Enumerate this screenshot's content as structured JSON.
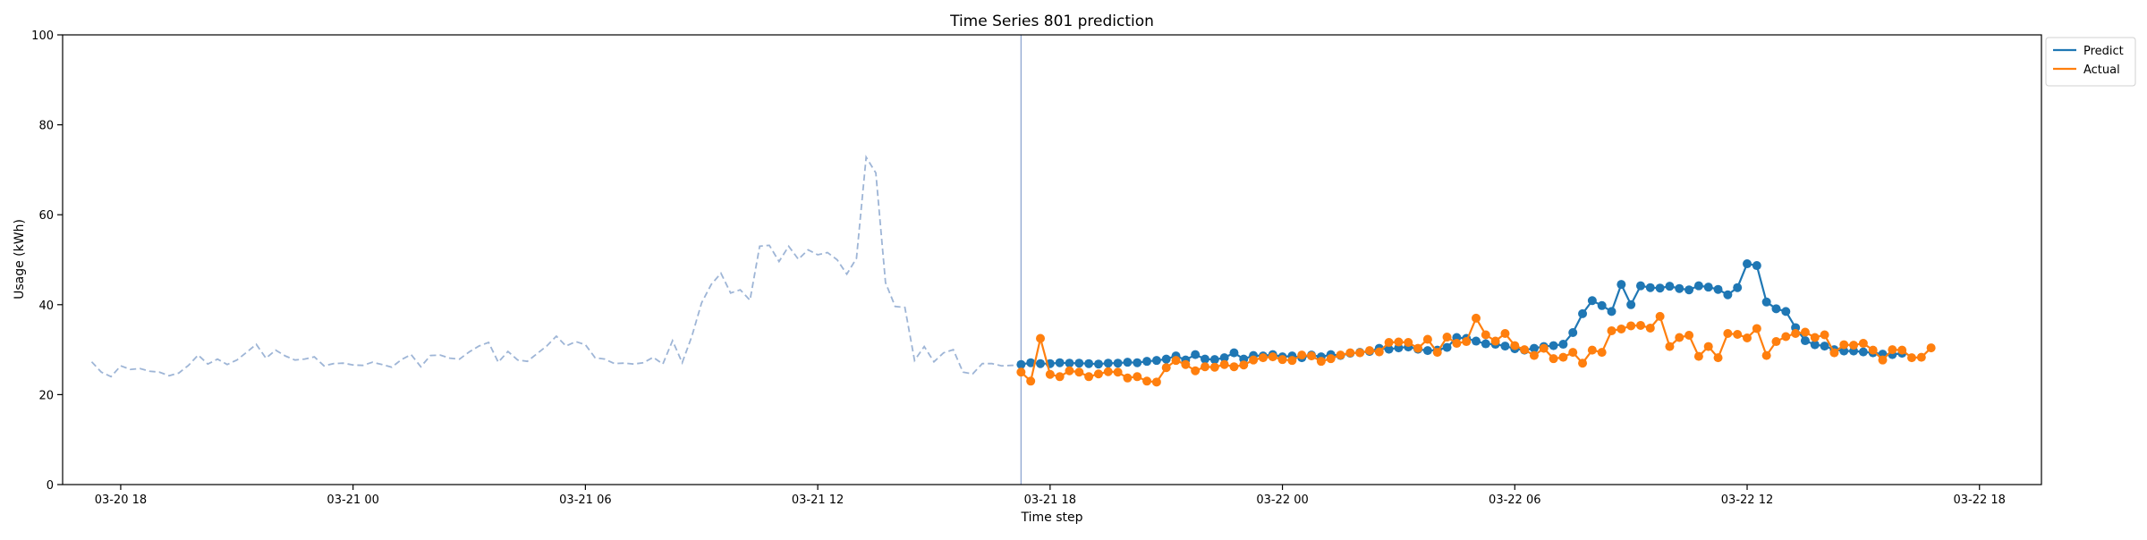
{
  "chart_data": {
    "type": "line",
    "title": "Time Series 801 prediction",
    "xlabel": "Time step",
    "ylabel": "Usage (kWh)",
    "ylim": [
      0,
      100
    ],
    "yticks": [
      0,
      20,
      40,
      60,
      80,
      100
    ],
    "xticks": [
      {
        "value": 18,
        "label": "03-20 18"
      },
      {
        "value": 24,
        "label": "03-21 00"
      },
      {
        "value": 30,
        "label": "03-21 06"
      },
      {
        "value": 36,
        "label": "03-21 12"
      },
      {
        "value": 42,
        "label": "03-21 18"
      },
      {
        "value": 48,
        "label": "03-22 00"
      },
      {
        "value": 54,
        "label": "03-22 06"
      },
      {
        "value": 60,
        "label": "03-22 12"
      },
      {
        "value": 66,
        "label": "03-22 18"
      }
    ],
    "xlim": [
      16.5,
      67.6
    ],
    "grid": false,
    "legend": "top-right",
    "split_marker_x": 41.25,
    "history_series": {
      "name": "",
      "color": "#9eb5d6",
      "dashed": true,
      "start_x": 17.25,
      "step": 0.25,
      "values": [
        27.3,
        25.0,
        24.0,
        26.4,
        25.6,
        25.8,
        25.2,
        25.0,
        24.2,
        24.8,
        26.5,
        28.8,
        26.8,
        27.9,
        26.7,
        27.7,
        29.4,
        31.2,
        28.1,
        29.9,
        28.6,
        27.7,
        27.9,
        28.4,
        26.4,
        26.9,
        27.0,
        26.6,
        26.5,
        27.2,
        26.7,
        26.1,
        27.8,
        28.9,
        26.2,
        28.7,
        28.8,
        28.1,
        27.9,
        29.5,
        30.8,
        31.6,
        27.2,
        29.6,
        27.7,
        27.4,
        29.1,
        30.8,
        33.0,
        30.8,
        31.8,
        31.1,
        28.2,
        27.9,
        26.9,
        27.0,
        26.8,
        27.1,
        28.3,
        26.8,
        32.0,
        27.1,
        33.0,
        40.4,
        44.5,
        47.0,
        42.6,
        43.3,
        41.0,
        53.0,
        53.2,
        49.6,
        53.0,
        50.1,
        52.2,
        51.1,
        51.6,
        50.0,
        46.8,
        50.3,
        72.8,
        69.3,
        44.9,
        39.6,
        39.4,
        27.6,
        30.7,
        27.3,
        29.3,
        30.0,
        25.0,
        24.6,
        26.9,
        26.9,
        26.4,
        26.5,
        26.6
      ]
    },
    "series": [
      {
        "name": "Predict",
        "color": "#1f77b4",
        "start_x": 41.25,
        "step": 0.25,
        "values": [
          26.7,
          27.1,
          26.9,
          26.9,
          27.1,
          27.0,
          27.0,
          26.9,
          26.8,
          27.0,
          27.0,
          27.2,
          27.1,
          27.4,
          27.6,
          27.9,
          28.6,
          27.7,
          28.9,
          27.9,
          27.8,
          28.2,
          29.3,
          27.9,
          28.7,
          28.6,
          28.9,
          28.4,
          28.6,
          28.2,
          28.8,
          28.4,
          28.9,
          28.7,
          29.2,
          29.4,
          29.6,
          30.3,
          30.1,
          30.4,
          30.6,
          30.1,
          29.8,
          29.9,
          30.5,
          32.7,
          32.5,
          31.9,
          31.3,
          31.2,
          30.8,
          30.2,
          29.9,
          30.3,
          30.7,
          30.9,
          31.2,
          33.8,
          38.0,
          40.9,
          39.8,
          38.5,
          44.5,
          40.0,
          44.2,
          43.8,
          43.7,
          44.1,
          43.6,
          43.3,
          44.2,
          43.9,
          43.4,
          42.2,
          43.8,
          49.1,
          48.7,
          40.6,
          39.1,
          38.5,
          34.9,
          32.0,
          31.1,
          30.8,
          30.0,
          29.7,
          29.7,
          29.5,
          29.3,
          29.0,
          28.9,
          29.2
        ]
      },
      {
        "name": "Actual",
        "color": "#ff7f0e",
        "start_x": 41.25,
        "step": 0.25,
        "values": [
          25.0,
          23.0,
          32.5,
          24.5,
          24.0,
          25.3,
          25.0,
          24.0,
          24.6,
          25.1,
          25.0,
          23.7,
          24.0,
          23.0,
          22.8,
          26.0,
          27.6,
          26.7,
          25.3,
          26.2,
          26.1,
          26.7,
          26.2,
          26.6,
          27.7,
          28.2,
          28.4,
          27.8,
          27.6,
          28.8,
          28.6,
          27.4,
          28.0,
          28.8,
          29.3,
          29.3,
          29.8,
          29.5,
          31.6,
          31.7,
          31.6,
          30.3,
          32.3,
          29.4,
          32.8,
          31.4,
          31.8,
          37.0,
          33.3,
          31.9,
          33.6,
          30.9,
          30.0,
          28.7,
          30.3,
          28.0,
          28.3,
          29.4,
          27.0,
          29.9,
          29.4,
          34.2,
          34.6,
          35.3,
          35.4,
          34.8,
          37.4,
          30.7,
          32.7,
          33.2,
          28.5,
          30.7,
          28.2,
          33.6,
          33.4,
          32.6,
          34.7,
          28.7,
          31.8,
          32.9,
          33.6,
          33.9,
          32.7,
          33.3,
          29.3,
          31.1,
          31.0,
          31.4,
          29.9,
          27.7,
          30.0,
          29.9,
          28.2,
          28.3,
          30.4
        ]
      }
    ]
  }
}
